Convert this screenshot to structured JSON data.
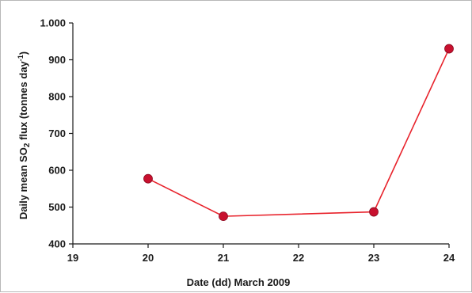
{
  "chart_data": {
    "type": "line",
    "xlabel": "Date (dd) March 2009",
    "ylabel_parts": {
      "pre": "Daily mean SO",
      "sub": "2",
      "mid": " flux (tonnes day",
      "sup": "-1",
      "post": ")"
    },
    "x_ticks": [
      "19",
      "20",
      "21",
      "22",
      "23",
      "24"
    ],
    "y_ticks": [
      "400",
      "500",
      "600",
      "700",
      "800",
      "900",
      "1.000"
    ],
    "y_tick_values": [
      400,
      500,
      600,
      700,
      800,
      900,
      1000
    ],
    "ylim": [
      400,
      1000
    ],
    "grid": false,
    "line_color": "#e8232c",
    "marker_color": "#c8102e",
    "series": [
      {
        "x": [
          "20",
          "21",
          "23",
          "24"
        ],
        "y": [
          577,
          475,
          487,
          930
        ]
      }
    ]
  }
}
